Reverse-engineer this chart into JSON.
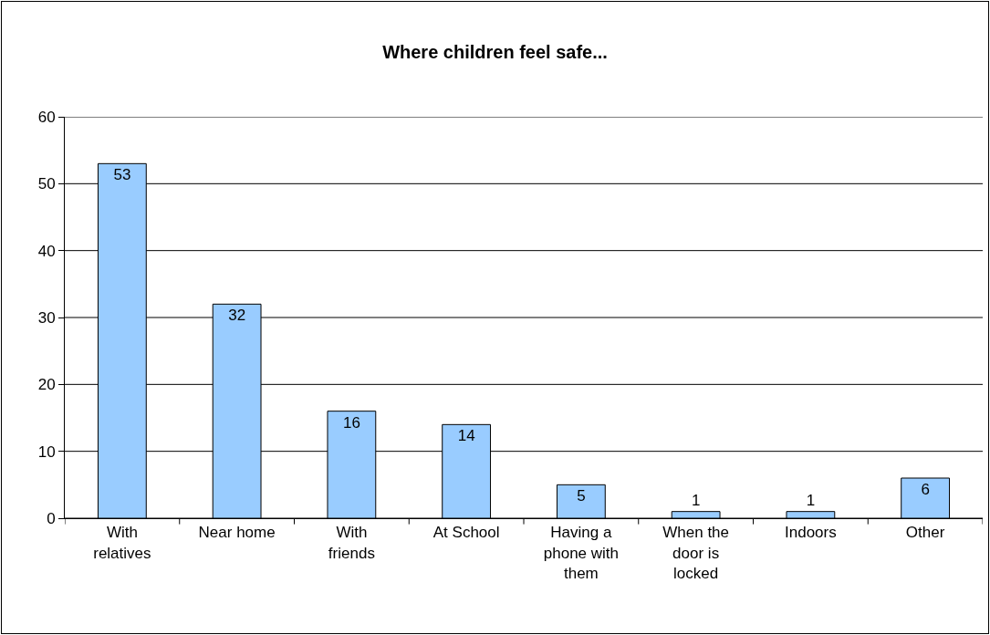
{
  "chart_data": {
    "type": "bar",
    "title": "Where children feel safe...",
    "categories": [
      "With relatives",
      "Near home",
      "With friends",
      "At School",
      "Having a phone with them",
      "When the door is locked",
      "Indoors",
      "Other"
    ],
    "values": [
      53,
      32,
      16,
      14,
      5,
      1,
      1,
      6
    ],
    "color": "#99ccff",
    "ylim": [
      0,
      60
    ],
    "yticks": [
      0,
      10,
      20,
      30,
      40,
      50,
      60
    ],
    "grid": "y",
    "data_labels": true
  }
}
